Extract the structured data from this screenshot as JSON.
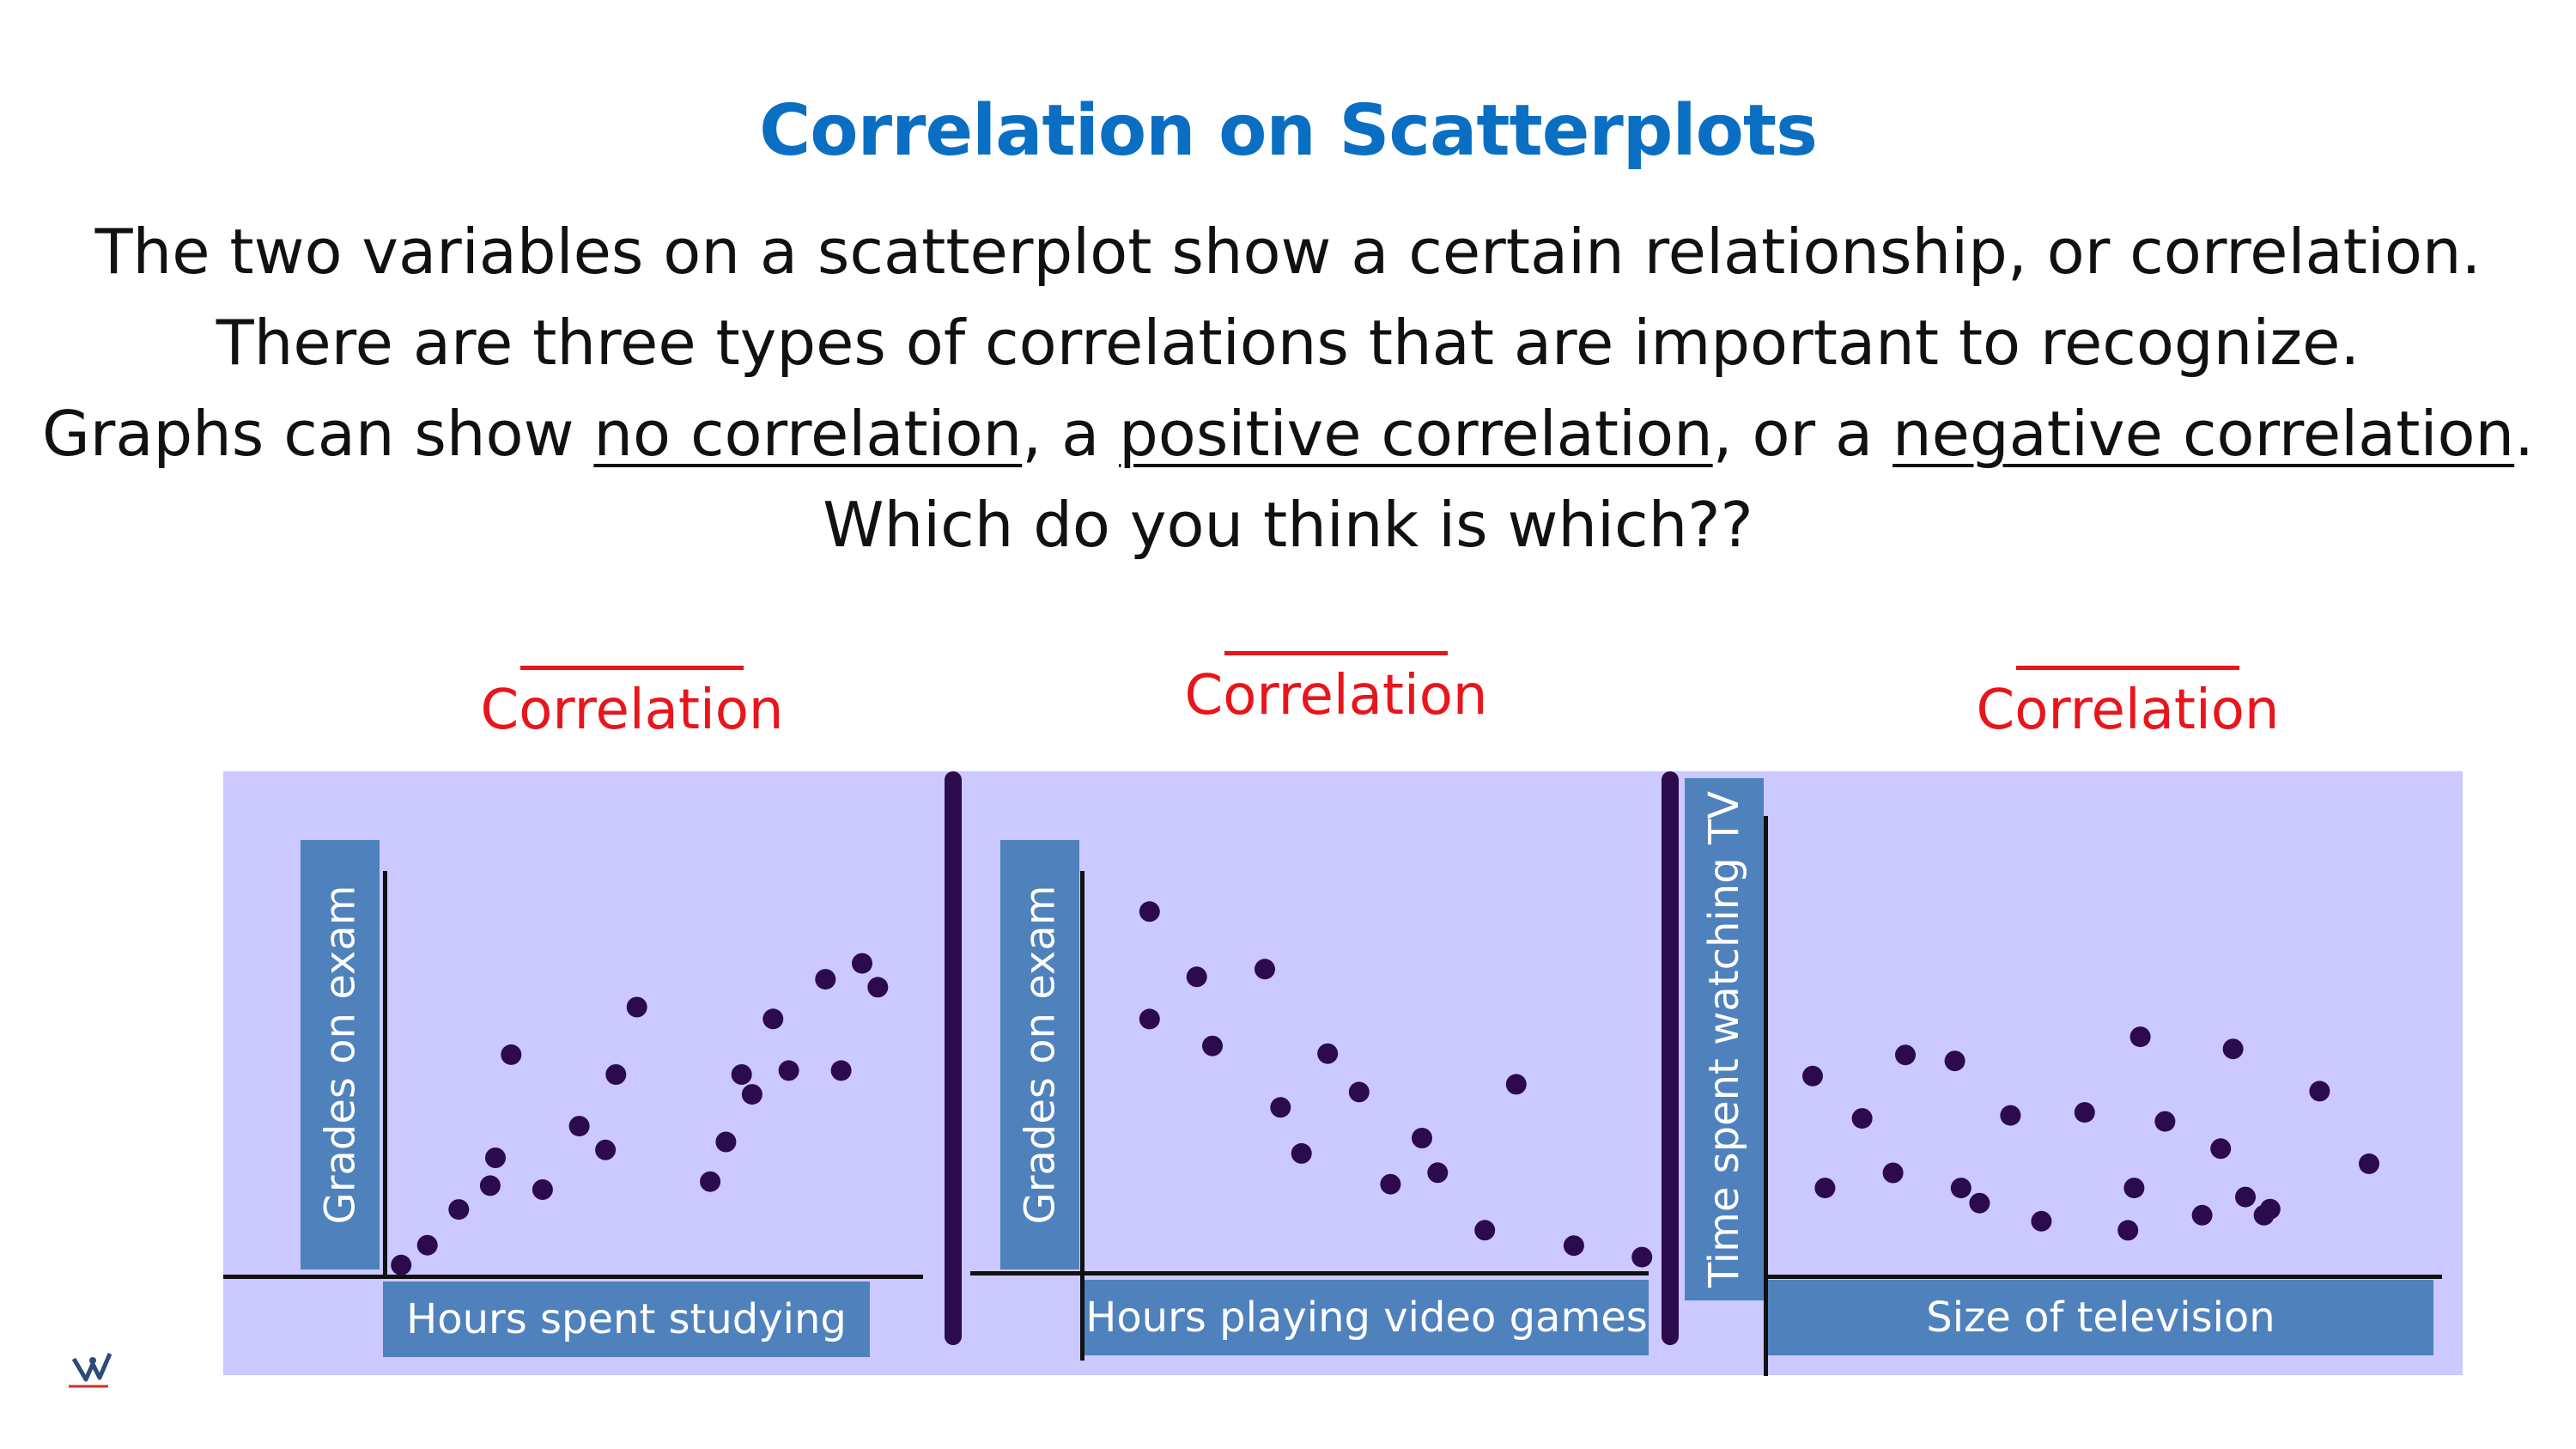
{
  "title": "Correlation on Scatterplots",
  "paragraph": {
    "line1": "The two variables on a scatterplot show a certain relationship, or correlation.",
    "line2": "There are three types of correlations that are important to recognize.",
    "line3_pre": "Graphs can show ",
    "line3_u1": "no correlation",
    "line3_mid1": ", a ",
    "line3_u2": "positive correlation",
    "line3_mid2": ", or a ",
    "line3_u3": "negative correlation",
    "line3_post": ".",
    "line4": "Which do you think is which??"
  },
  "colors": {
    "title": "#0a6fc2",
    "heading": "#e8151b",
    "panel": "#cbc9ff",
    "label_box": "#4f81bd",
    "point": "#2c0a4e"
  },
  "logo_icon": "hand-logo-icon",
  "chart_data": [
    {
      "type": "scatter",
      "title": "Correlation",
      "xlabel": "Hours spent studying",
      "ylabel": "Grades on exam",
      "xlim": [
        0,
        100
      ],
      "ylim": [
        0,
        100
      ],
      "grid": false,
      "x": [
        2,
        7,
        13,
        19,
        20,
        23,
        29,
        36,
        41,
        43,
        47,
        61,
        64,
        67,
        69,
        73,
        76,
        83,
        86,
        90,
        93
      ],
      "y": [
        2,
        7,
        16,
        22,
        29,
        55,
        21,
        37,
        31,
        50,
        67,
        23,
        33,
        50,
        45,
        64,
        51,
        74,
        51,
        78,
        72
      ]
    },
    {
      "type": "scatter",
      "title": "Correlation",
      "xlabel": "Hours playing video games",
      "ylabel": "Grades on exam",
      "xlim": [
        0,
        100
      ],
      "ylim": [
        0,
        100
      ],
      "grid": false,
      "x": [
        8,
        8,
        17,
        20,
        30,
        33,
        37,
        42,
        48,
        54,
        60,
        63,
        72,
        78,
        89,
        102
      ],
      "y": [
        93,
        65,
        76,
        58,
        78,
        42,
        30,
        56,
        46,
        22,
        34,
        25,
        10,
        48,
        6,
        3
      ]
    },
    {
      "type": "scatter",
      "title": "Correlation",
      "xlabel": "Size of television",
      "ylabel": "Time spent watching TV",
      "xlim": [
        0,
        100
      ],
      "ylim": [
        0,
        100
      ],
      "grid": false,
      "x": [
        5,
        7,
        13,
        18,
        20,
        28,
        29,
        32,
        37,
        42,
        49,
        56,
        57,
        58,
        62,
        68,
        71,
        73,
        75,
        78,
        79,
        87,
        95
      ],
      "y": [
        58,
        21,
        44,
        26,
        65,
        63,
        21,
        16,
        45,
        10,
        46,
        7,
        21,
        71,
        43,
        12,
        34,
        67,
        18,
        12,
        14,
        53,
        29
      ]
    }
  ]
}
